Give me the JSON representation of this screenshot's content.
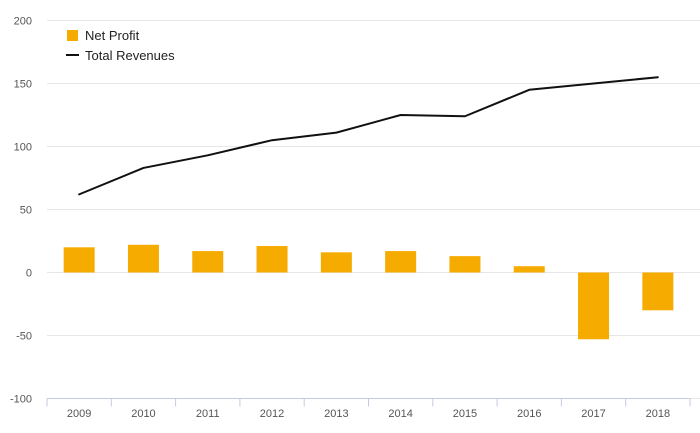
{
  "chart_data": {
    "type": "bar",
    "categories": [
      "2009",
      "2010",
      "2011",
      "2012",
      "2013",
      "2014",
      "2015",
      "2016",
      "2017",
      "2018"
    ],
    "series": [
      {
        "name": "Net Profit",
        "type": "bar",
        "color": "#f6ab00",
        "values": [
          20,
          22,
          17,
          21,
          16,
          17,
          13,
          5,
          -53,
          -30
        ]
      },
      {
        "name": "Total Revenues",
        "type": "line",
        "color": "#111111",
        "values": [
          62,
          83,
          93,
          105,
          111,
          125,
          124,
          145,
          150,
          155
        ]
      }
    ],
    "ylim": [
      -100,
      200
    ],
    "yticks": [
      200,
      150,
      100,
      50,
      0,
      -50,
      -100
    ],
    "grid": true,
    "legend_position": "top-left"
  }
}
